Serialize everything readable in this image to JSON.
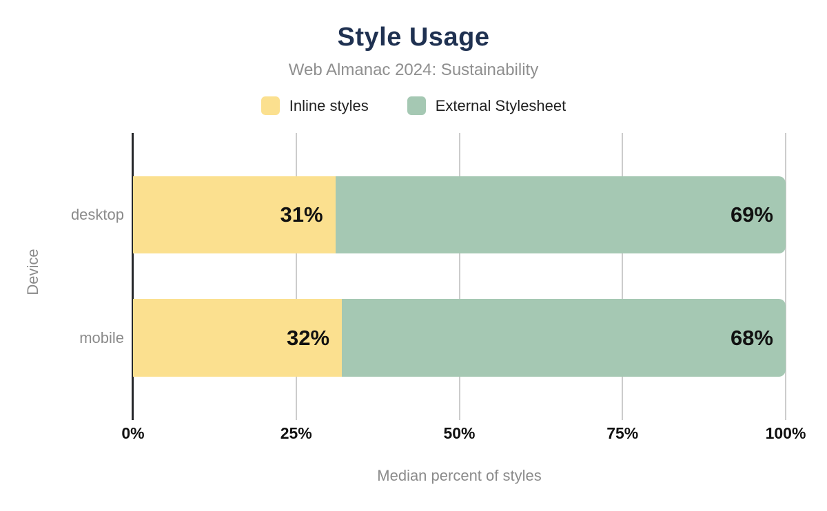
{
  "chart_data": {
    "type": "bar",
    "orientation": "horizontal",
    "stacked": true,
    "title": "Style Usage",
    "subtitle": "Web Almanac 2024: Sustainability",
    "xlabel": "Median percent of styles",
    "ylabel": "Device",
    "categories": [
      "desktop",
      "mobile"
    ],
    "series": [
      {
        "name": "Inline styles",
        "color": "#fbe08f",
        "values": [
          31,
          32
        ]
      },
      {
        "name": "External Stylesheet",
        "color": "#a5c8b3",
        "values": [
          69,
          68
        ]
      }
    ],
    "xlim": [
      0,
      100
    ],
    "x_ticks": [
      {
        "value": 0,
        "label": "0%"
      },
      {
        "value": 25,
        "label": "25%"
      },
      {
        "value": 50,
        "label": "50%"
      },
      {
        "value": 75,
        "label": "75%"
      },
      {
        "value": 100,
        "label": "100%"
      }
    ],
    "data_label_format": "{value}%",
    "grid": "vertical",
    "legend_position": "top"
  },
  "colors": {
    "title": "#1f3151",
    "subtitle": "#8f8f8f",
    "axis_text": "#8b8b8b",
    "tick_text": "#111111",
    "bar_label": "#111111",
    "legend_text": "#212121",
    "gridline": "#cccccc",
    "axis_line": "#26282b",
    "background": "#ffffff"
  }
}
